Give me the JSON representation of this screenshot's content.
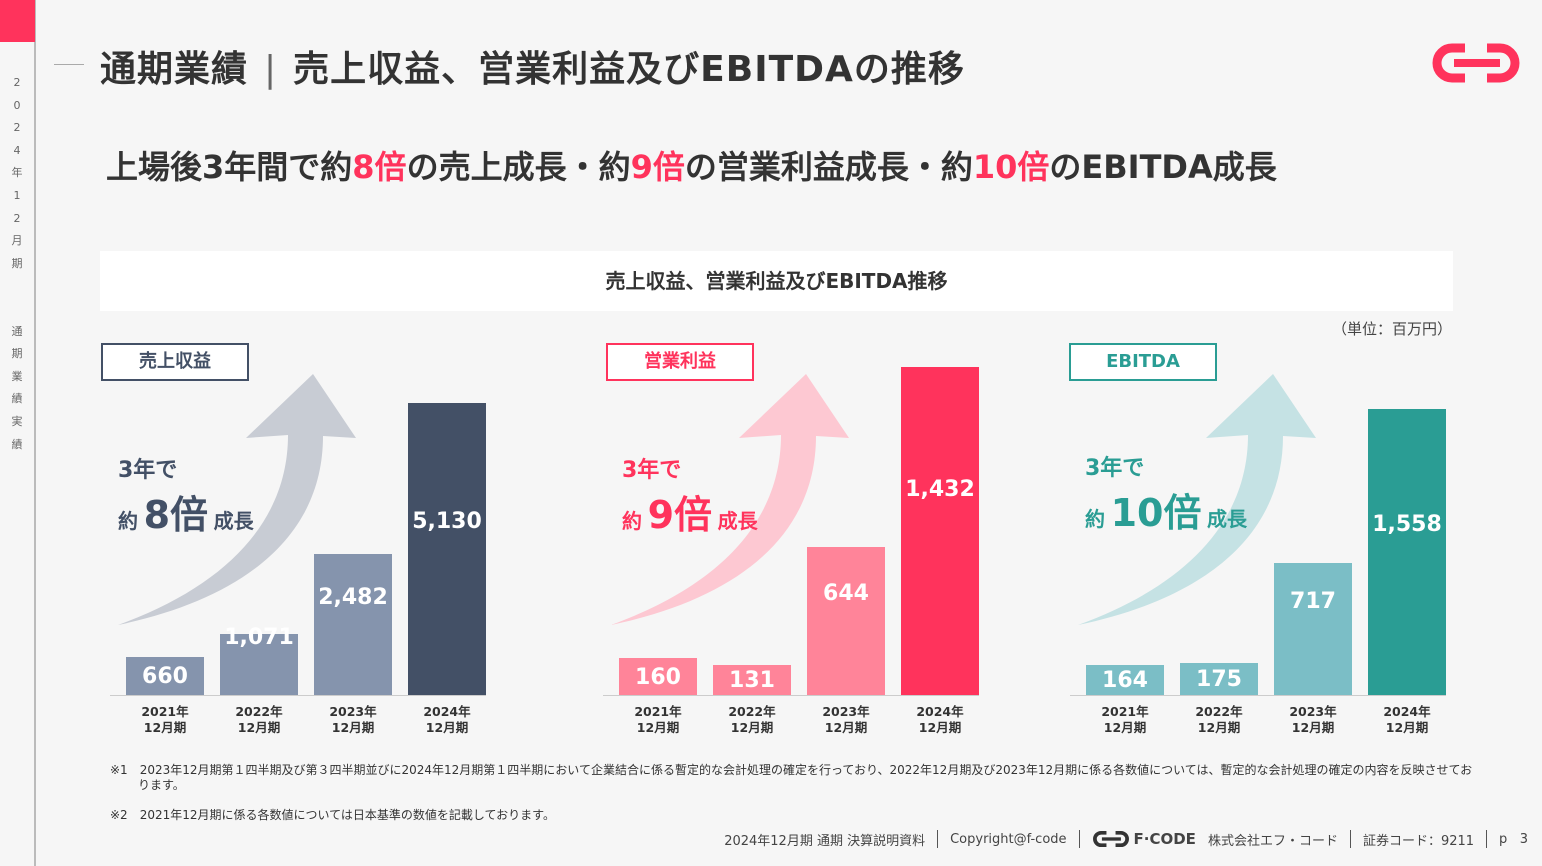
{
  "sidebar": {
    "vertical_text": "2024年12月期 通期業績実績"
  },
  "header": {
    "section": "通期業績",
    "separator": "|",
    "title": "売上収益、営業利益及びEBITDAの推移"
  },
  "headline": {
    "p1": "上場後3年間で約",
    "h1": "8倍",
    "p2": "の売上成長・約",
    "h2": "9倍",
    "p3": "の営業利益成長・約",
    "h3": "10倍",
    "p4": "のEBITDA成長"
  },
  "chart_banner": "売上収益、営業利益及びEBITDA推移",
  "unit": "（単位：百万円）",
  "colors": {
    "accent": "#ff335c",
    "navy": "#435066",
    "teal": "#2a9d94"
  },
  "chart_data": [
    {
      "type": "bar",
      "title": "売上収益",
      "categories": [
        "2021年\n12月期",
        "2022年\n12月期",
        "2023年\n12月期",
        "2024年\n12月期"
      ],
      "values": [
        660,
        1071,
        2482,
        5130
      ],
      "labels": [
        "660",
        "1,071",
        "2,482",
        "5,130"
      ],
      "colors": [
        "#8594ad",
        "#8594ad",
        "#8594ad",
        "#435066"
      ],
      "growth": {
        "l1": "3年で",
        "pre": "約",
        "mult": "8倍",
        "post": "成長"
      },
      "theme": "#435066"
    },
    {
      "type": "bar",
      "title": "営業利益",
      "categories": [
        "2021年\n12月期",
        "2022年\n12月期",
        "2023年\n12月期",
        "2024年\n12月期"
      ],
      "values": [
        160,
        131,
        644,
        1432
      ],
      "labels": [
        "160",
        "131",
        "644",
        "1,432"
      ],
      "colors": [
        "#ff8499",
        "#ff8499",
        "#ff8499",
        "#ff335c"
      ],
      "growth": {
        "l1": "3年で",
        "pre": "約",
        "mult": "9倍",
        "post": "成長"
      },
      "theme": "#ff335c"
    },
    {
      "type": "bar",
      "title": "EBITDA",
      "categories": [
        "2021年\n12月期",
        "2022年\n12月期",
        "2023年\n12月期",
        "2024年\n12月期"
      ],
      "values": [
        164,
        175,
        717,
        1558
      ],
      "labels": [
        "164",
        "175",
        "717",
        "1,558"
      ],
      "colors": [
        "#7bbec6",
        "#7bbec6",
        "#7bbec6",
        "#2a9d94"
      ],
      "growth": {
        "l1": "3年で",
        "pre": "約",
        "mult": "10倍",
        "post": "成長"
      },
      "theme": "#2a9d94"
    }
  ],
  "notes": [
    "※1　2023年12月期第１四半期及び第３四半期並びに2024年12月期第１四半期において企業結合に係る暫定的な会計処理の確定を行っており、2022年12月期及び2023年12月期に係る各数値については、暫定的な会計処理の確定の内容を反映させております。",
    "※2　2021年12月期に係る各数値については日本基準の数値を記載しております。"
  ],
  "footer": {
    "doc": "2024年12月期 通期 決算説明資料",
    "copyright": "Copyright@f-code",
    "brand": "F·CODE",
    "company": "株式会社エフ・コード",
    "code": "証券コード：9211",
    "page_prefix": "p",
    "page": "3"
  }
}
